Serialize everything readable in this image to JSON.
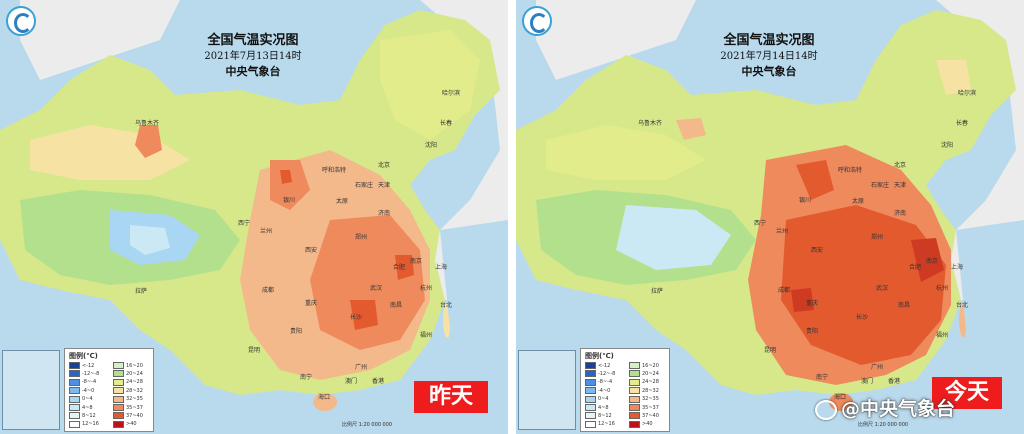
{
  "panels": [
    {
      "id": "left",
      "title": "全国气温实况图",
      "date": "2021年7月13日14时",
      "issuer": "中央气象台",
      "day_tag": "昨天",
      "legend_title": "图例(℃)",
      "footer": "比例尺 1:20 000 000",
      "cities": [
        "乌鲁木齐",
        "哈尔滨",
        "长春",
        "沈阳",
        "北京",
        "天津",
        "呼和浩特",
        "石家庄",
        "太原",
        "济南",
        "银川",
        "西宁",
        "兰州",
        "郑州",
        "西安",
        "南京",
        "合肥",
        "上海",
        "杭州",
        "武汉",
        "成都",
        "重庆",
        "长沙",
        "南昌",
        "福州",
        "拉萨",
        "贵阳",
        "昆明",
        "南宁",
        "广州",
        "香港",
        "澳门",
        "海口",
        "台北"
      ]
    },
    {
      "id": "right",
      "title": "全国气温实况图",
      "date": "2021年7月14日14时",
      "issuer": "中央气象台",
      "day_tag": "今天",
      "legend_title": "图例(℃)",
      "footer": "比例尺 1:20 000 000",
      "cities": [
        "乌鲁木齐",
        "哈尔滨",
        "长春",
        "沈阳",
        "北京",
        "天津",
        "呼和浩特",
        "石家庄",
        "太原",
        "济南",
        "银川",
        "西宁",
        "兰州",
        "郑州",
        "西安",
        "南京",
        "合肥",
        "上海",
        "杭州",
        "武汉",
        "成都",
        "重庆",
        "长沙",
        "南昌",
        "福州",
        "拉萨",
        "贵阳",
        "昆明",
        "南宁",
        "广州",
        "香港",
        "澳门",
        "海口",
        "台北"
      ]
    }
  ],
  "legend_items": [
    {
      "label": "<-12",
      "color": "#1b3f9c"
    },
    {
      "label": "-12~-8",
      "color": "#2c63c6"
    },
    {
      "label": "-8~-4",
      "color": "#4d8fe0"
    },
    {
      "label": "-4~0",
      "color": "#7db8ef"
    },
    {
      "label": "0~4",
      "color": "#a9d6f3"
    },
    {
      "label": "4~8",
      "color": "#cbe8f5"
    },
    {
      "label": "8~12",
      "color": "#e5f4f8"
    },
    {
      "label": "12~16",
      "color": "#ffffff"
    },
    {
      "label": "16~20",
      "color": "#d7efc4"
    },
    {
      "label": "20~24",
      "color": "#b3e08c"
    },
    {
      "label": "24~28",
      "color": "#e2ec8a"
    },
    {
      "label": "28~32",
      "color": "#f6e3a4"
    },
    {
      "label": "32~35",
      "color": "#f4b98b"
    },
    {
      "label": "35~37",
      "color": "#ee8a5c"
    },
    {
      "label": "37~40",
      "color": "#e35a2f"
    },
    {
      "label": ">40",
      "color": "#b8141a"
    }
  ],
  "watermark": "@中央气象台",
  "colors": {
    "sea": "#b9d9ec",
    "land_outside": "#ececec",
    "tag_red": "#ee1c1c"
  }
}
